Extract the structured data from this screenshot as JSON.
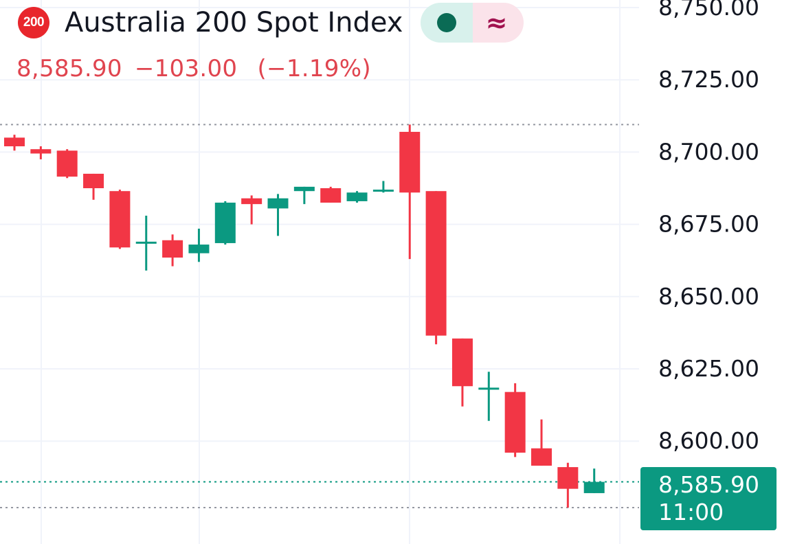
{
  "header": {
    "badge_text": "200",
    "title": "Australia 200 Spot Index",
    "market_open_icon": "dot-icon",
    "delayed_icon_text": "≈",
    "colors": {
      "badge": "#e8262c",
      "open_dot": "#0a6b55",
      "delayed_symbol": "#a1124f"
    }
  },
  "quote": {
    "price": "8,585.90",
    "change": "−103.00",
    "change_pct": "(−1.19%)",
    "color": "#e0444f"
  },
  "last_price": {
    "price": "8,585.90",
    "time": "11:00",
    "color": "#0b9981"
  },
  "chart_data": {
    "type": "candlestick",
    "y_axis": {
      "position": "right",
      "ticks": [
        8750,
        8725,
        8700,
        8675,
        8650,
        8625,
        8600
      ],
      "tick_labels": [
        "8,750.00",
        "8,725.00",
        "8,700.00",
        "8,675.00",
        "8,650.00",
        "8,625.00",
        "8,600.00"
      ]
    },
    "grid": true,
    "colors": {
      "up": "#0b9981",
      "down": "#f23645",
      "grid": "#f0f3fa",
      "dotted_line": "#9598a1"
    },
    "reference_lines": {
      "high": 8709.5,
      "last": 8585.9,
      "low": 8577
    },
    "candles": [
      {
        "open": 8705.0,
        "high": 8706.0,
        "low": 8700.5,
        "close": 8702.0
      },
      {
        "open": 8701.0,
        "high": 8702.0,
        "low": 8697.5,
        "close": 8699.5
      },
      {
        "open": 8700.5,
        "high": 8701.0,
        "low": 8691.0,
        "close": 8691.5
      },
      {
        "open": 8692.5,
        "high": 8692.5,
        "low": 8683.5,
        "close": 8687.5
      },
      {
        "open": 8686.5,
        "high": 8687.0,
        "low": 8666.5,
        "close": 8667.0
      },
      {
        "open": 8668.5,
        "high": 8678.0,
        "low": 8659.0,
        "close": 8669.0
      },
      {
        "open": 8669.5,
        "high": 8671.5,
        "low": 8660.5,
        "close": 8663.5
      },
      {
        "open": 8665.0,
        "high": 8673.5,
        "low": 8662.0,
        "close": 8668.0
      },
      {
        "open": 8668.5,
        "high": 8683.0,
        "low": 8668.0,
        "close": 8682.5
      },
      {
        "open": 8684.0,
        "high": 8685.0,
        "low": 8675.0,
        "close": 8682.0
      },
      {
        "open": 8680.5,
        "high": 8685.5,
        "low": 8671.0,
        "close": 8684.0
      },
      {
        "open": 8686.5,
        "high": 8688.0,
        "low": 8682.0,
        "close": 8688.0
      },
      {
        "open": 8687.5,
        "high": 8688.0,
        "low": 8682.5,
        "close": 8682.5
      },
      {
        "open": 8683.0,
        "high": 8686.5,
        "low": 8682.5,
        "close": 8686.0
      },
      {
        "open": 8686.5,
        "high": 8690.0,
        "low": 8686.0,
        "close": 8687.0
      },
      {
        "open": 8707.0,
        "high": 8709.5,
        "low": 8663.0,
        "close": 8686.0
      },
      {
        "open": 8686.5,
        "high": 8686.5,
        "low": 8633.5,
        "close": 8636.5
      },
      {
        "open": 8635.5,
        "high": 8635.5,
        "low": 8612.0,
        "close": 8619.0
      },
      {
        "open": 8618.5,
        "high": 8624.0,
        "low": 8607.0,
        "close": 8618.5
      },
      {
        "open": 8617.0,
        "high": 8620.0,
        "low": 8594.5,
        "close": 8596.0
      },
      {
        "open": 8597.5,
        "high": 8607.5,
        "low": 8591.5,
        "close": 8591.5
      },
      {
        "open": 8591.0,
        "high": 8592.5,
        "low": 8577.0,
        "close": 8583.5
      },
      {
        "open": 8582.0,
        "high": 8590.5,
        "low": 8582.0,
        "close": 8585.9
      }
    ]
  }
}
